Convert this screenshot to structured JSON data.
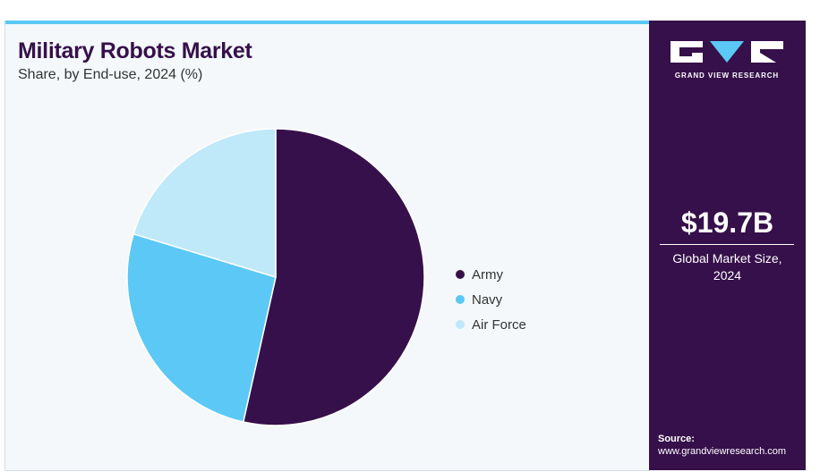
{
  "header": {
    "title": "Military Robots Market",
    "subtitle": "Share, by End-use, 2024 (%)"
  },
  "chart_data": {
    "type": "pie",
    "categories": [
      "Army",
      "Navy",
      "Air Force"
    ],
    "values": [
      53.5,
      26.2,
      20.3
    ],
    "colors": [
      "#36104a",
      "#5bc8f5",
      "#bfe8f9"
    ],
    "start_angle_deg": 0,
    "direction": "clockwise",
    "legend_position": "right"
  },
  "sidebar": {
    "logo_text": "GRAND VIEW RESEARCH",
    "market_value": "$19.7B",
    "market_label": "Global Market Size, 2024",
    "source_label": "Source:",
    "source_url": "www.grandviewresearch.com"
  },
  "colors": {
    "brand": "#36104a",
    "accent": "#5bc8f5",
    "background": "#f4f8fb"
  }
}
